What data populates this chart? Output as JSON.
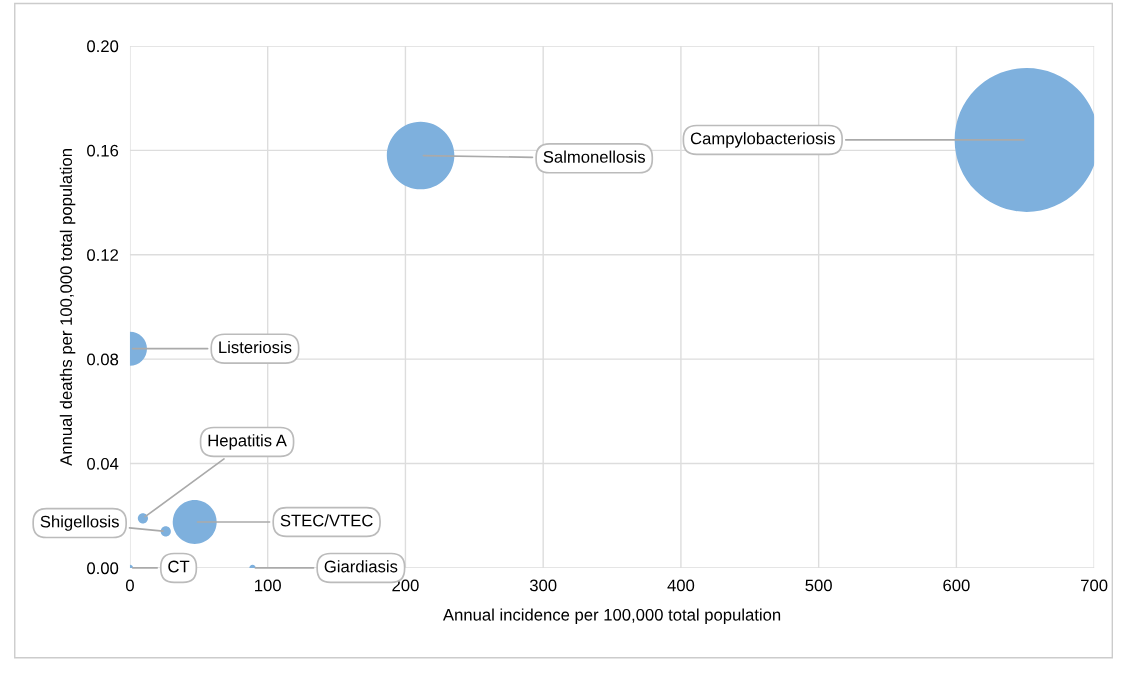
{
  "chart_data": {
    "type": "bubble",
    "xlabel": "Annual incidence per 100,000 total population",
    "ylabel": "Annual deaths per 100,000 total population",
    "series": [
      {
        "color": "#7eb0dd",
        "x": [
          651,
          211,
          0,
          9.4,
          47,
          26,
          0,
          89
        ],
        "values": [
          0.164,
          0.158,
          0.084,
          0.019,
          0.0176,
          0.014,
          0.0,
          0.0
        ],
        "sizes": [
          1,
          0.22,
          0.056,
          0.005,
          0.093,
          0.005,
          0.002,
          0.002
        ]
      }
    ],
    "annotations": [
      {
        "text": "Campylobacteriosis",
        "x": 651,
        "y": 0.164
      },
      {
        "text": "Salmonellosis",
        "x": 211,
        "y": 0.158
      },
      {
        "text": "Listeriosis",
        "x": 0,
        "y": 0.084
      },
      {
        "text": "Hepatitis A",
        "x": 9.4,
        "y": 0.019
      },
      {
        "text": "STEC/VTEC",
        "x": 47,
        "y": 0.0176
      },
      {
        "text": "Shigellosis",
        "x": 26,
        "y": 0.014
      },
      {
        "text": "CT",
        "x": 0,
        "y": 0.0
      },
      {
        "text": "Giardiasis",
        "x": 89,
        "y": 0.0
      }
    ],
    "xlim": [
      0,
      700
    ],
    "xticks": [
      0,
      100,
      200,
      300,
      400,
      500,
      600,
      700
    ],
    "ylim": [
      0,
      0.2
    ],
    "yticks": [
      {
        "value": 0,
        "label": "0.00"
      },
      {
        "value": 0.04,
        "label": "0.04"
      },
      {
        "value": 0.08,
        "label": "0.08"
      },
      {
        "value": 0.12,
        "label": "0.12"
      },
      {
        "value": 0.16,
        "label": "0.16"
      },
      {
        "value": 0.2,
        "label": "0.20"
      }
    ],
    "grid": true
  }
}
